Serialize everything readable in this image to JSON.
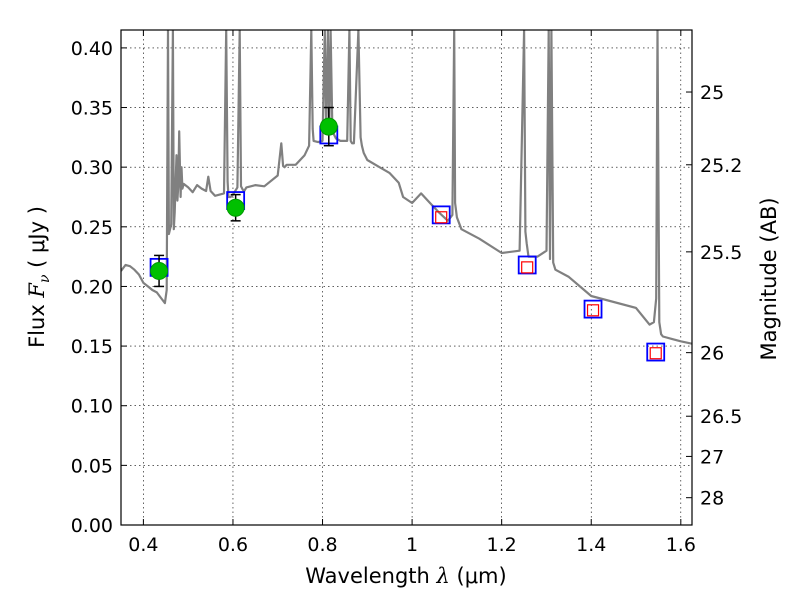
{
  "chart_data": {
    "type": "scatter",
    "title": "",
    "xlabel_prefix": "Wavelength ",
    "xlabel_symbol": "λ",
    "xlabel_suffix": " (μm)",
    "ylabel_prefix": "Flux ",
    "ylabel_symbol": "F",
    "ylabel_subscript": "ν",
    "ylabel_suffix": " ( μJy )",
    "y2label": "Magnitude (AB)",
    "xlim": [
      0.35,
      1.625
    ],
    "ylim": [
      0.0,
      0.415
    ],
    "grid": true,
    "grid_style": "dotted",
    "x_ticks": [
      0.4,
      0.6,
      0.8,
      1.0,
      1.2,
      1.4,
      1.6
    ],
    "x_tick_labels": [
      "0.4",
      "0.6",
      "0.8",
      "1",
      "1.2",
      "1.4",
      "1.6"
    ],
    "y_ticks": [
      0.0,
      0.05,
      0.1,
      0.15,
      0.2,
      0.25,
      0.3,
      0.35,
      0.4
    ],
    "y_tick_labels": [
      "0.00",
      "0.05",
      "0.10",
      "0.15",
      "0.20",
      "0.25",
      "0.30",
      "0.35",
      "0.40"
    ],
    "y2_ticks": [
      {
        "label": "25",
        "flux": 0.363
      },
      {
        "label": "25.2",
        "flux": 0.302
      },
      {
        "label": "25.5",
        "flux": 0.229
      },
      {
        "label": "26",
        "flux": 0.1445
      },
      {
        "label": "26.5",
        "flux": 0.0912
      },
      {
        "label": "27",
        "flux": 0.0575
      },
      {
        "label": "28",
        "flux": 0.0229
      }
    ],
    "series": [
      {
        "marker": "filled-circle",
        "color": "#00c000",
        "points": [
          {
            "x": 0.435,
            "y": 0.213,
            "yerr": 0.013
          },
          {
            "x": 0.606,
            "y": 0.266,
            "yerr": 0.011
          },
          {
            "x": 0.814,
            "y": 0.334,
            "yerr": 0.016
          }
        ]
      },
      {
        "marker": "open-square",
        "color": "#0000ff",
        "points": [
          {
            "x": 0.435,
            "y": 0.216
          },
          {
            "x": 0.606,
            "y": 0.272
          },
          {
            "x": 0.814,
            "y": 0.327
          },
          {
            "x": 1.065,
            "y": 0.26
          },
          {
            "x": 1.257,
            "y": 0.218
          },
          {
            "x": 1.404,
            "y": 0.181
          },
          {
            "x": 1.544,
            "y": 0.145
          }
        ]
      },
      {
        "marker": "open-square-small",
        "color": "#ff0000",
        "points": [
          {
            "x": 1.065,
            "y": 0.258
          },
          {
            "x": 1.257,
            "y": 0.216
          },
          {
            "x": 1.404,
            "y": 0.18
          },
          {
            "x": 1.544,
            "y": 0.144
          }
        ]
      }
    ],
    "model_spectrum": {
      "color": "#808080",
      "x": [
        0.35,
        0.36,
        0.37,
        0.38,
        0.39,
        0.4,
        0.41,
        0.42,
        0.43,
        0.44,
        0.448,
        0.452,
        0.455,
        0.457,
        0.462,
        0.466,
        0.468,
        0.47,
        0.474,
        0.476,
        0.478,
        0.48,
        0.483,
        0.485,
        0.487,
        0.49,
        0.5,
        0.51,
        0.52,
        0.53,
        0.54,
        0.545,
        0.55,
        0.56,
        0.58,
        0.585,
        0.588,
        0.59,
        0.595,
        0.6,
        0.61,
        0.615,
        0.618,
        0.622,
        0.625,
        0.63,
        0.65,
        0.67,
        0.7,
        0.708,
        0.712,
        0.715,
        0.72,
        0.74,
        0.76,
        0.77,
        0.775,
        0.778,
        0.78,
        0.79,
        0.8,
        0.805,
        0.808,
        0.812,
        0.815,
        0.818,
        0.822,
        0.83,
        0.84,
        0.855,
        0.86,
        0.863,
        0.866,
        0.87,
        0.88,
        0.885,
        0.888,
        0.892,
        0.9,
        0.95,
        0.97,
        0.98,
        1.0,
        1.02,
        1.04,
        1.06,
        1.08,
        1.09,
        1.094,
        1.096,
        1.1,
        1.11,
        1.15,
        1.2,
        1.24,
        1.25,
        1.253,
        1.256,
        1.26,
        1.28,
        1.3,
        1.305,
        1.308,
        1.311,
        1.315,
        1.32,
        1.35,
        1.4,
        1.5,
        1.53,
        1.54,
        1.545,
        1.548,
        1.552,
        1.556,
        1.56,
        1.58,
        1.6,
        1.625
      ],
      "y": [
        0.213,
        0.218,
        0.217,
        0.214,
        0.21,
        0.203,
        0.2,
        0.197,
        0.195,
        0.19,
        0.186,
        0.197,
        0.415,
        0.244,
        0.252,
        0.415,
        0.248,
        0.262,
        0.31,
        0.272,
        0.285,
        0.33,
        0.275,
        0.3,
        0.282,
        0.286,
        0.283,
        0.279,
        0.285,
        0.282,
        0.28,
        0.292,
        0.28,
        0.276,
        0.278,
        0.415,
        0.288,
        0.275,
        0.275,
        0.277,
        0.283,
        0.415,
        0.284,
        0.281,
        0.28,
        0.283,
        0.285,
        0.284,
        0.293,
        0.32,
        0.301,
        0.3,
        0.302,
        0.302,
        0.31,
        0.318,
        0.415,
        0.332,
        0.322,
        0.321,
        0.322,
        0.415,
        0.33,
        0.415,
        0.328,
        0.415,
        0.33,
        0.324,
        0.322,
        0.322,
        0.415,
        0.322,
        0.32,
        0.32,
        0.415,
        0.325,
        0.318,
        0.312,
        0.306,
        0.295,
        0.287,
        0.275,
        0.27,
        0.278,
        0.27,
        0.262,
        0.255,
        0.26,
        0.415,
        0.27,
        0.258,
        0.248,
        0.24,
        0.228,
        0.23,
        0.415,
        0.246,
        0.236,
        0.225,
        0.225,
        0.23,
        0.415,
        0.223,
        0.415,
        0.22,
        0.214,
        0.208,
        0.192,
        0.182,
        0.168,
        0.17,
        0.19,
        0.415,
        0.17,
        0.16,
        0.158,
        0.156,
        0.154,
        0.152
      ]
    }
  }
}
